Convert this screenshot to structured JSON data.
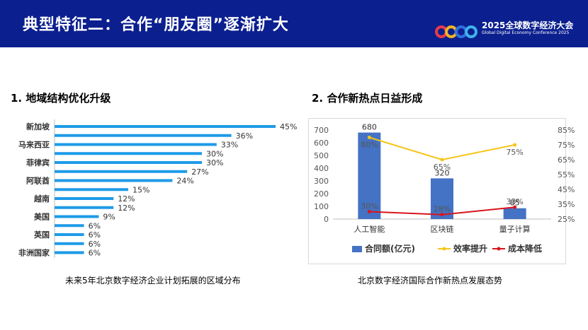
{
  "header": {
    "title": "典型特征二：合作“朋友圈”逐渐扩大",
    "logo_line1": "2025全球数字经济大会",
    "logo_line2": "Global Digital Economy Conference 2025",
    "logo_colors": [
      "#e8394a",
      "#f0b323",
      "#2f6fe0",
      "#3fb3e8"
    ]
  },
  "section1": {
    "title": "1. 地域结构优化升级",
    "caption": "未来5年北京数字经济企业计划拓展的区域分布"
  },
  "section2": {
    "title": "2. 合作新热点日益形成",
    "caption": "北京数字经济国际合作新热点发展态势"
  },
  "chart_data": [
    {
      "type": "bar",
      "orientation": "horizontal",
      "color": "#1e9be8",
      "categories": [
        "新加坡",
        "",
        "马来西亚",
        "",
        "菲律宾",
        "",
        "阿联酋",
        "",
        "越南",
        "",
        "美国",
        "",
        "英国",
        "",
        "非洲国家"
      ],
      "values": [
        45,
        36,
        33,
        30,
        30,
        27,
        24,
        15,
        12,
        12,
        9,
        6,
        6,
        6,
        6
      ],
      "value_labels": [
        "45%",
        "36%",
        "33%",
        "30%",
        "30%",
        "27%",
        "24%",
        "15%",
        "12%",
        "12%",
        "9%",
        "6%",
        "6%",
        "6%",
        "6%"
      ],
      "xlim": [
        0,
        45
      ]
    },
    {
      "type": "bar+line",
      "categories": [
        "人工智能",
        "区块链",
        "量子计算"
      ],
      "bar_series": {
        "name": "合同额(亿元)",
        "values": [
          680,
          320,
          85
        ],
        "color": "#4472c4"
      },
      "line_series": [
        {
          "name": "效率提升",
          "values": [
            80,
            65,
            75
          ],
          "labels": [
            "80%",
            "65%",
            "75%"
          ],
          "color": "#f5c518"
        },
        {
          "name": "成本降低",
          "values": [
            30,
            28,
            33
          ],
          "labels": [
            "30%",
            "28%",
            "33%"
          ],
          "color": "#d9151c"
        }
      ],
      "y_left": {
        "min": 0,
        "max": 700,
        "ticks": [
          "0",
          "100",
          "200",
          "300",
          "400",
          "500",
          "600",
          "700"
        ]
      },
      "y_right": {
        "min": 25,
        "max": 85,
        "ticks": [
          "25%",
          "35%",
          "45%",
          "55%",
          "65%",
          "75%",
          "85%"
        ]
      },
      "legend_position": "bottom"
    }
  ]
}
